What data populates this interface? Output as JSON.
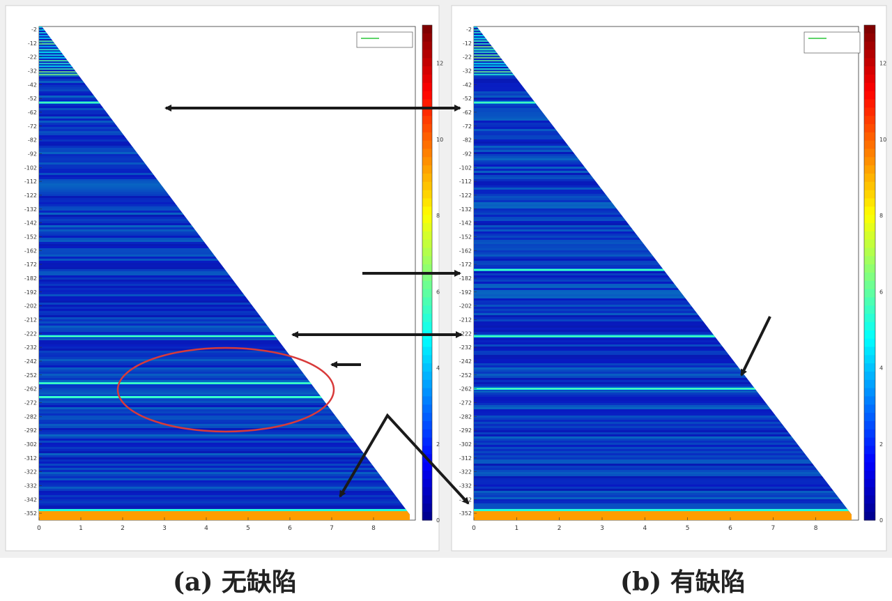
{
  "captions": {
    "a": "(a) 无缺陷",
    "b": "(b) 有缺陷"
  },
  "chart_data": [
    {
      "type": "heatmap",
      "panel": "a",
      "title": "",
      "xlabel": "",
      "ylabel": "",
      "x_ticks": [
        "0",
        "1",
        "2",
        "3",
        "4",
        "5",
        "6",
        "7",
        "8"
      ],
      "y_ticks": [
        "-2",
        "-12",
        "-22",
        "-32",
        "-42",
        "-52",
        "-62",
        "-72",
        "-82",
        "-92",
        "-102",
        "-112",
        "-122",
        "-132",
        "-142",
        "-152",
        "-162",
        "-172",
        "-182",
        "-192",
        "-202",
        "-212",
        "-222",
        "-232",
        "-242",
        "-252",
        "-262",
        "-272",
        "-282",
        "-292",
        "-302",
        "-312",
        "-322",
        "-332",
        "-342",
        "-352"
      ],
      "xlim": [
        0,
        9
      ],
      "ylim": [
        -357,
        0
      ],
      "colorbar_ticks": [
        "0",
        "2",
        "4",
        "6",
        "8",
        "10",
        "12"
      ],
      "colorbar_range": [
        0,
        13
      ],
      "colormap": "jet",
      "bright_bands_y": [
        -55,
        -224,
        -258,
        -268,
        -350
      ],
      "annotations": [
        "horizontal arrows",
        "red ellipse region",
        "diagonal arrow"
      ]
    },
    {
      "type": "heatmap",
      "panel": "b",
      "title": "",
      "xlabel": "",
      "ylabel": "",
      "x_ticks": [
        "0",
        "1",
        "2",
        "3",
        "4",
        "5",
        "6",
        "7",
        "8"
      ],
      "y_ticks": [
        "-2",
        "-12",
        "-22",
        "-32",
        "-42",
        "-52",
        "-62",
        "-72",
        "-82",
        "-92",
        "-102",
        "-112",
        "-122",
        "-132",
        "-142",
        "-152",
        "-162",
        "-172",
        "-182",
        "-192",
        "-202",
        "-212",
        "-222",
        "-232",
        "-242",
        "-252",
        "-262",
        "-272",
        "-282",
        "-292",
        "-302",
        "-312",
        "-322",
        "-332",
        "-342",
        "-352"
      ],
      "xlim": [
        0,
        9
      ],
      "ylim": [
        -357,
        0
      ],
      "colorbar_ticks": [
        "0",
        "2",
        "4",
        "6",
        "8",
        "10",
        "12"
      ],
      "colorbar_range": [
        0,
        13
      ],
      "colormap": "jet",
      "bright_bands_y": [
        -55,
        -176,
        -224,
        -262,
        -350
      ],
      "annotations": [
        "diagonal arrow"
      ]
    }
  ]
}
